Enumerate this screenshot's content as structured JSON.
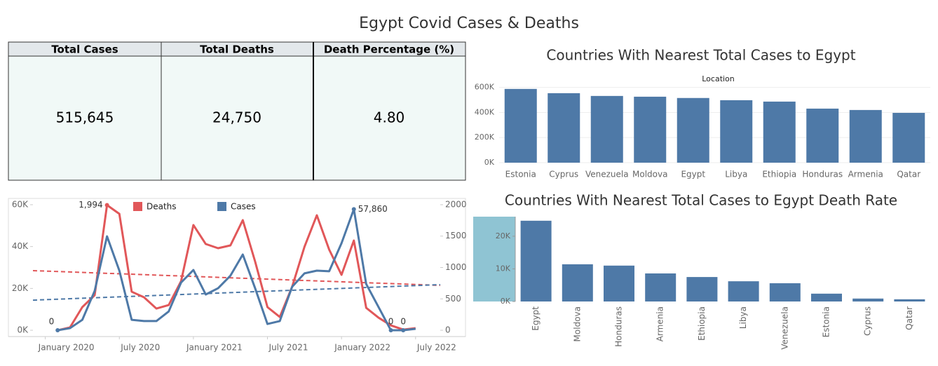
{
  "title": "Egypt Covid Cases & Deaths",
  "kpis": {
    "headers": [
      "Total Cases",
      "Total Deaths",
      "Death Percentage (%)"
    ],
    "values": [
      "515,645",
      "24,750",
      "4.80"
    ]
  },
  "chart_data": [
    {
      "type": "bar",
      "title": "Countries With Nearest Total Cases to Egypt",
      "x_label": "Location",
      "categories": [
        "Estonia",
        "Cyprus",
        "Venezuela",
        "Moldova",
        "Egypt",
        "Libya",
        "Ethiopia",
        "Honduras",
        "Armenia",
        "Qatar"
      ],
      "values": [
        588000,
        554000,
        532000,
        526000,
        515645,
        498000,
        487000,
        431000,
        420000,
        397000
      ],
      "color": "#4e79a7",
      "ylim": [
        0,
        615000
      ],
      "grid": true,
      "rotate_labels": false,
      "yticks": [
        {
          "value": 0,
          "label": "0K"
        },
        {
          "value": 200000,
          "label": "200K"
        },
        {
          "value": 400000,
          "label": "400K"
        },
        {
          "value": 600000,
          "label": "600K"
        }
      ]
    },
    {
      "type": "bar",
      "title": "Countries With Nearest Total Cases to Egypt Death Rate",
      "categories": [
        "Egypt",
        "Moldova",
        "Honduras",
        "Armenia",
        "Ethiopia",
        "Libya",
        "Venezuela",
        "Estonia",
        "Cyprus",
        "Qatar"
      ],
      "values": [
        24750,
        11400,
        11000,
        8600,
        7500,
        6200,
        5600,
        2400,
        900,
        680
      ],
      "color": "#4e79a7",
      "ylim": [
        0,
        26000
      ],
      "grid": false,
      "rotate_labels": true,
      "yticks": [
        {
          "value": 0,
          "label": "0K"
        },
        {
          "value": 10000,
          "label": "10K"
        },
        {
          "value": 20000,
          "label": "20K"
        }
      ]
    },
    {
      "type": "line",
      "x": [
        "2020-02",
        "2020-03",
        "2020-04",
        "2020-05",
        "2020-06",
        "2020-07",
        "2020-08",
        "2020-09",
        "2020-10",
        "2020-11",
        "2020-12",
        "2021-01",
        "2021-02",
        "2021-03",
        "2021-04",
        "2021-05",
        "2021-06",
        "2021-07",
        "2021-08",
        "2021-09",
        "2021-10",
        "2021-11",
        "2021-12",
        "2022-01",
        "2022-02",
        "2022-03",
        "2022-04",
        "2022-05",
        "2022-06",
        "2022-07"
      ],
      "xlim": [
        "2019-12",
        "2022-09"
      ],
      "xticks": [
        {
          "value": "2020-01",
          "label": "January 2020"
        },
        {
          "value": "2020-07",
          "label": "July 2020"
        },
        {
          "value": "2021-01",
          "label": "January 2021"
        },
        {
          "value": "2021-07",
          "label": "July 2021"
        },
        {
          "value": "2022-01",
          "label": "January 2022"
        },
        {
          "value": "2022-07",
          "label": "July 2022"
        }
      ],
      "ylim": [
        -3000,
        63000
      ],
      "yticks": [
        {
          "value": 0,
          "label": "0K"
        },
        {
          "value": 20000,
          "label": "20K"
        },
        {
          "value": 40000,
          "label": "40K"
        },
        {
          "value": 60000,
          "label": "60K"
        }
      ],
      "y2lim": [
        -100,
        2100
      ],
      "y2ticks": [
        0,
        500,
        1000,
        1500,
        2000
      ],
      "series": [
        {
          "name": "Deaths",
          "color": "#e15759",
          "axis": "y2",
          "values": [
            0,
            45,
            369,
            559,
            1994,
            1854,
            614,
            525,
            346,
            402,
            782,
            1676,
            1374,
            1307,
            1352,
            1754,
            1095,
            369,
            212,
            693,
            1330,
            1832,
            1285,
            883,
            1430,
            357,
            201,
            78,
            11,
            34
          ],
          "value_labels": [
            null,
            null,
            null,
            null,
            "1,994",
            null,
            null,
            null,
            null,
            null,
            null,
            null,
            null,
            null,
            null,
            null,
            null,
            null,
            null,
            null,
            null,
            null,
            null,
            null,
            null,
            null,
            null,
            null,
            null,
            null
          ],
          "trend": [
            950,
            715
          ]
        },
        {
          "name": "Cases",
          "color": "#4e79a7",
          "axis": "y",
          "values": [
            0,
            1000,
            5000,
            18800,
            44900,
            28500,
            5000,
            4400,
            4400,
            9000,
            22800,
            28800,
            17100,
            20100,
            26100,
            36200,
            20100,
            3000,
            4400,
            20800,
            27200,
            28500,
            28200,
            41600,
            57860,
            22100,
            11100,
            0,
            0,
            700
          ],
          "value_labels": [
            "0",
            null,
            null,
            null,
            null,
            null,
            null,
            null,
            null,
            null,
            null,
            null,
            null,
            null,
            null,
            null,
            null,
            null,
            null,
            null,
            null,
            null,
            null,
            null,
            "57,860",
            null,
            null,
            "0",
            "0",
            null
          ],
          "trend": [
            14400,
            21800
          ]
        }
      ]
    }
  ]
}
